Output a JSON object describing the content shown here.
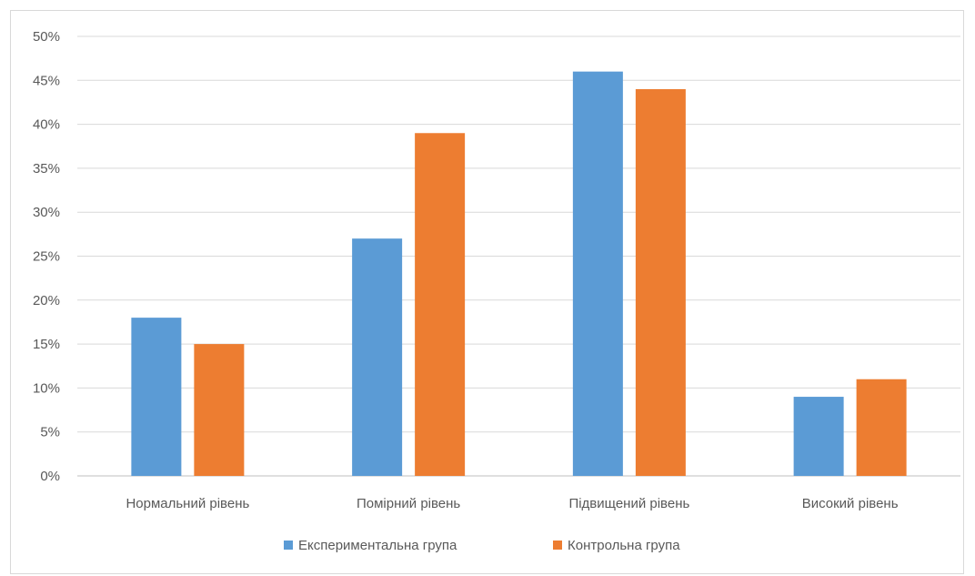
{
  "chart_data": {
    "type": "bar",
    "categories": [
      "Нормальний рівень",
      "Помірний рівень",
      "Підвищений рівень",
      "Високий рівень"
    ],
    "series": [
      {
        "name": "Експериментальна група",
        "color": "#5b9bd5",
        "values": [
          18,
          27,
          46,
          9
        ]
      },
      {
        "name": "Контрольна група",
        "color": "#ed7d31",
        "values": [
          15,
          39,
          44,
          11
        ]
      }
    ],
    "title": "",
    "xlabel": "",
    "ylabel": "",
    "ylim": [
      0,
      50
    ],
    "y_ticks": [
      "0%",
      "5%",
      "10%",
      "15%",
      "20%",
      "25%",
      "30%",
      "35%",
      "40%",
      "45%",
      "50%"
    ],
    "grid": true,
    "legend_position": "bottom"
  }
}
